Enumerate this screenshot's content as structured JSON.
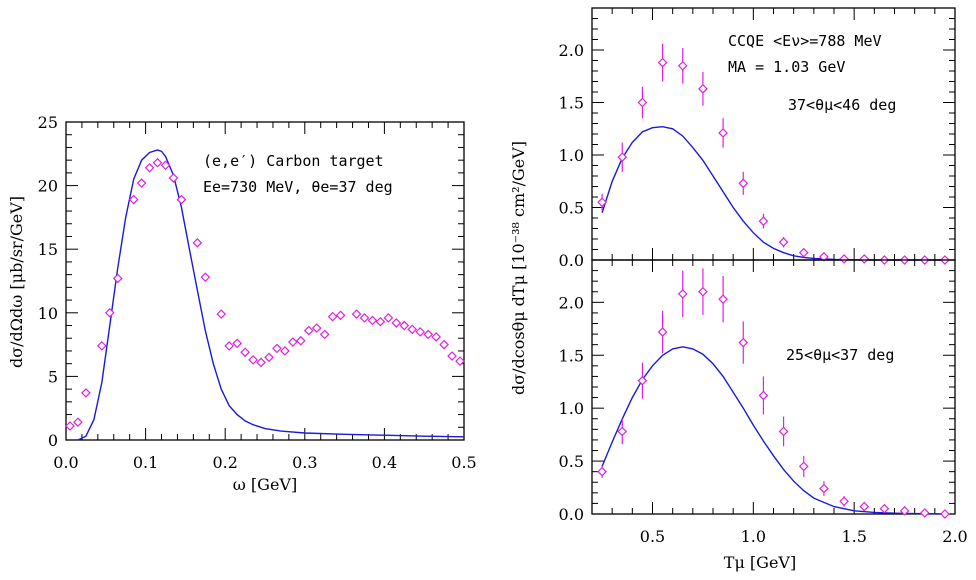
{
  "colors": {
    "theory": "#1a1adc",
    "data": "#e020e0",
    "axis": "#000000"
  },
  "chart_data": [
    {
      "type": "scatter",
      "panel": "left",
      "xlabel": "ω [GeV]",
      "ylabel": "dσ/dΩdω [μb/sr/GeV]",
      "xlim": [
        0,
        0.5
      ],
      "ylim": [
        0,
        25
      ],
      "xticks": [
        "0.0",
        "0.1",
        "0.2",
        "0.3",
        "0.4",
        "0.5"
      ],
      "yticks": [
        "0",
        "5",
        "10",
        "15",
        "20",
        "25"
      ],
      "annotations": [
        "(e,e′) Carbon target",
        "Ee=730 MeV, θe=37 deg"
      ],
      "series": [
        {
          "kind": "curve",
          "x": [
            0.015,
            0.025,
            0.035,
            0.045,
            0.055,
            0.065,
            0.075,
            0.085,
            0.095,
            0.105,
            0.115,
            0.12,
            0.125,
            0.135,
            0.145,
            0.155,
            0.165,
            0.175,
            0.185,
            0.195,
            0.205,
            0.215,
            0.225,
            0.235,
            0.25,
            0.27,
            0.3,
            0.35,
            0.4,
            0.45,
            0.5
          ],
          "y": [
            0.0,
            0.3,
            1.6,
            4.5,
            9.0,
            13.5,
            17.5,
            20.5,
            22.0,
            22.6,
            22.8,
            22.7,
            22.3,
            20.8,
            18.3,
            15.0,
            11.8,
            8.6,
            6.0,
            4.0,
            2.7,
            2.0,
            1.5,
            1.2,
            0.9,
            0.7,
            0.55,
            0.45,
            0.38,
            0.3,
            0.25
          ]
        },
        {
          "kind": "points",
          "x": [
            0.005,
            0.015,
            0.025,
            0.045,
            0.055,
            0.065,
            0.085,
            0.095,
            0.105,
            0.115,
            0.125,
            0.135,
            0.145,
            0.165,
            0.175,
            0.195,
            0.205,
            0.215,
            0.225,
            0.235,
            0.245,
            0.255,
            0.265,
            0.275,
            0.285,
            0.295,
            0.305,
            0.315,
            0.325,
            0.335,
            0.345,
            0.365,
            0.375,
            0.385,
            0.395,
            0.405,
            0.415,
            0.425,
            0.435,
            0.445,
            0.455,
            0.465,
            0.475,
            0.485,
            0.495
          ],
          "y": [
            1.1,
            1.4,
            3.7,
            7.4,
            10.0,
            12.7,
            18.9,
            20.2,
            21.4,
            21.8,
            21.6,
            20.6,
            18.9,
            15.5,
            12.8,
            9.9,
            7.4,
            7.6,
            6.9,
            6.3,
            6.1,
            6.5,
            7.2,
            7.0,
            7.7,
            7.8,
            8.6,
            8.8,
            8.3,
            9.7,
            9.8,
            9.9,
            9.6,
            9.4,
            9.3,
            9.6,
            9.2,
            9.0,
            8.7,
            8.5,
            8.3,
            8.1,
            7.5,
            6.6,
            6.2
          ]
        }
      ]
    },
    {
      "type": "scatter",
      "panel": "right-top",
      "xlabel": "",
      "ylabel": "",
      "xlim": [
        0.2,
        2.0
      ],
      "ylim": [
        0,
        2.4
      ],
      "yticks": [
        "0.0",
        "0.5",
        "1.0",
        "1.5",
        "2.0"
      ],
      "annotations": [
        "CCQE <Eν>=788 MeV",
        "MA = 1.03 GeV",
        "37<θμ<46 deg"
      ],
      "series": [
        {
          "kind": "curve",
          "x": [
            0.25,
            0.3,
            0.35,
            0.4,
            0.45,
            0.5,
            0.55,
            0.6,
            0.65,
            0.7,
            0.75,
            0.8,
            0.85,
            0.9,
            0.95,
            1.0,
            1.05,
            1.1,
            1.15,
            1.2,
            1.25,
            1.3,
            1.4,
            1.5,
            1.6,
            1.8,
            1.95
          ],
          "y": [
            0.45,
            0.75,
            0.97,
            1.12,
            1.22,
            1.26,
            1.27,
            1.25,
            1.18,
            1.07,
            0.95,
            0.8,
            0.65,
            0.5,
            0.37,
            0.26,
            0.17,
            0.11,
            0.07,
            0.04,
            0.025,
            0.015,
            0.005,
            0.002,
            0.0,
            0.0,
            0.0
          ]
        },
        {
          "kind": "points",
          "x": [
            0.25,
            0.35,
            0.45,
            0.55,
            0.65,
            0.75,
            0.85,
            0.95,
            1.05,
            1.15,
            1.25,
            1.35,
            1.45,
            1.55,
            1.65,
            1.75,
            1.85,
            1.95
          ],
          "y": [
            0.55,
            0.98,
            1.5,
            1.88,
            1.85,
            1.63,
            1.21,
            0.73,
            0.37,
            0.17,
            0.07,
            0.03,
            0.01,
            0.01,
            0.0,
            0.0,
            0.0,
            0.0
          ],
          "err": [
            0.08,
            0.14,
            0.15,
            0.18,
            0.17,
            0.16,
            0.14,
            0.11,
            0.07,
            0.05,
            0.03,
            0.02,
            0.01,
            0.01,
            0.0,
            0.0,
            0.0,
            0.0
          ]
        }
      ]
    },
    {
      "type": "scatter",
      "panel": "right-bottom",
      "xlabel": "Tμ [GeV]",
      "ylabel": "dσ/dcosθμ dTμ [10⁻³⁸ cm²/GeV]",
      "xlim": [
        0.2,
        2.0
      ],
      "ylim": [
        0,
        2.4
      ],
      "xticks": [
        "0.5",
        "1.0",
        "1.5",
        "2.0"
      ],
      "yticks": [
        "0.0",
        "0.5",
        "1.0",
        "1.5",
        "2.0"
      ],
      "annotations": [
        "25<θμ<37 deg"
      ],
      "series": [
        {
          "kind": "curve",
          "x": [
            0.25,
            0.3,
            0.35,
            0.4,
            0.45,
            0.5,
            0.55,
            0.6,
            0.65,
            0.7,
            0.75,
            0.8,
            0.85,
            0.9,
            0.95,
            1.0,
            1.05,
            1.1,
            1.15,
            1.2,
            1.25,
            1.3,
            1.4,
            1.5,
            1.6,
            1.7,
            1.8,
            1.9,
            1.95
          ],
          "y": [
            0.45,
            0.68,
            0.9,
            1.1,
            1.27,
            1.4,
            1.5,
            1.56,
            1.58,
            1.56,
            1.51,
            1.42,
            1.3,
            1.15,
            1.0,
            0.84,
            0.69,
            0.55,
            0.42,
            0.31,
            0.22,
            0.15,
            0.07,
            0.03,
            0.015,
            0.008,
            0.004,
            0.002,
            0.0
          ]
        },
        {
          "kind": "points",
          "x": [
            0.25,
            0.35,
            0.45,
            0.55,
            0.65,
            0.75,
            0.85,
            0.95,
            1.05,
            1.15,
            1.25,
            1.35,
            1.45,
            1.55,
            1.65,
            1.75,
            1.85,
            1.95
          ],
          "y": [
            0.4,
            0.78,
            1.26,
            1.72,
            2.08,
            2.1,
            2.03,
            1.62,
            1.12,
            0.78,
            0.45,
            0.24,
            0.12,
            0.07,
            0.05,
            0.03,
            0.01,
            0.0
          ],
          "err": [
            0.06,
            0.12,
            0.17,
            0.2,
            0.22,
            0.22,
            0.22,
            0.2,
            0.18,
            0.14,
            0.1,
            0.07,
            0.05,
            0.03,
            0.02,
            0.01,
            0.01,
            0.0
          ]
        }
      ]
    }
  ]
}
